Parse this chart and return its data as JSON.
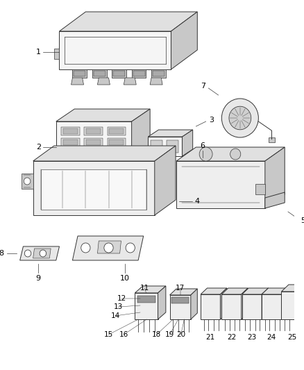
{
  "bg_color": "#ffffff",
  "lc": "#333333",
  "lw": 0.7,
  "figsize": [
    4.38,
    5.33
  ],
  "dpi": 100
}
